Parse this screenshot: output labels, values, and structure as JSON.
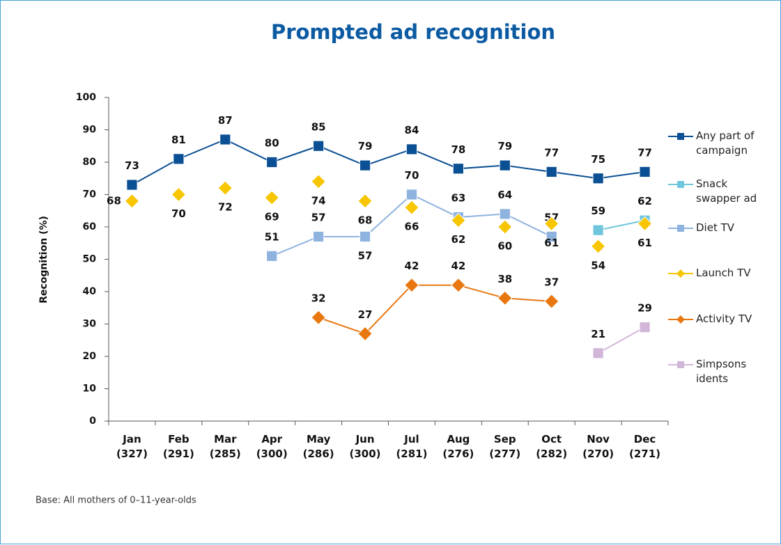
{
  "chart_data": {
    "type": "line",
    "title": "Prompted ad recognition",
    "y_label": "Recognition (%)",
    "note": "Base: All mothers of 0–11-year-olds",
    "categories": [
      "Jan\n(327)",
      "Feb\n(291)",
      "Mar\n(285)",
      "Apr\n(300)",
      "May\n(286)",
      "Jun\n(300)",
      "Jul\n(281)",
      "Aug\n(276)",
      "Sep\n(277)",
      "Oct\n(282)",
      "Nov\n(270)",
      "Dec\n(271)"
    ],
    "ylim": [
      0,
      100
    ],
    "yticks": [
      0,
      10,
      20,
      30,
      40,
      50,
      60,
      70,
      80,
      90,
      100
    ],
    "legend": "right",
    "series": [
      {
        "name": "Any part of campaign",
        "color": "#0b4f94",
        "marker": "square",
        "line": true,
        "values": [
          73,
          81,
          87,
          80,
          85,
          79,
          84,
          78,
          79,
          77,
          75,
          77
        ]
      },
      {
        "name": "Snack swapper ad",
        "color": "#6fc6dc",
        "marker": "square",
        "line": true,
        "values": [
          null,
          null,
          null,
          null,
          null,
          null,
          null,
          null,
          null,
          null,
          59,
          62
        ]
      },
      {
        "name": "Diet TV",
        "color": "#8fb3df",
        "marker": "square",
        "line": true,
        "values": [
          null,
          null,
          null,
          51,
          57,
          57,
          70,
          63,
          64,
          57,
          null,
          null
        ]
      },
      {
        "name": "Launch TV",
        "color": "#f7c600",
        "marker": "diamond",
        "line": false,
        "values": [
          68,
          70,
          72,
          69,
          74,
          68,
          66,
          62,
          60,
          61,
          54,
          61
        ]
      },
      {
        "name": "Activity TV",
        "color": "#e8770f",
        "marker": "diamond",
        "line": true,
        "values": [
          null,
          null,
          null,
          null,
          32,
          27,
          42,
          42,
          38,
          37,
          null,
          null
        ]
      },
      {
        "name": "Simpsons idents",
        "color": "#d2b6d8",
        "marker": "square",
        "line": true,
        "values": [
          null,
          null,
          null,
          null,
          null,
          null,
          null,
          null,
          null,
          null,
          21,
          29
        ]
      }
    ]
  }
}
